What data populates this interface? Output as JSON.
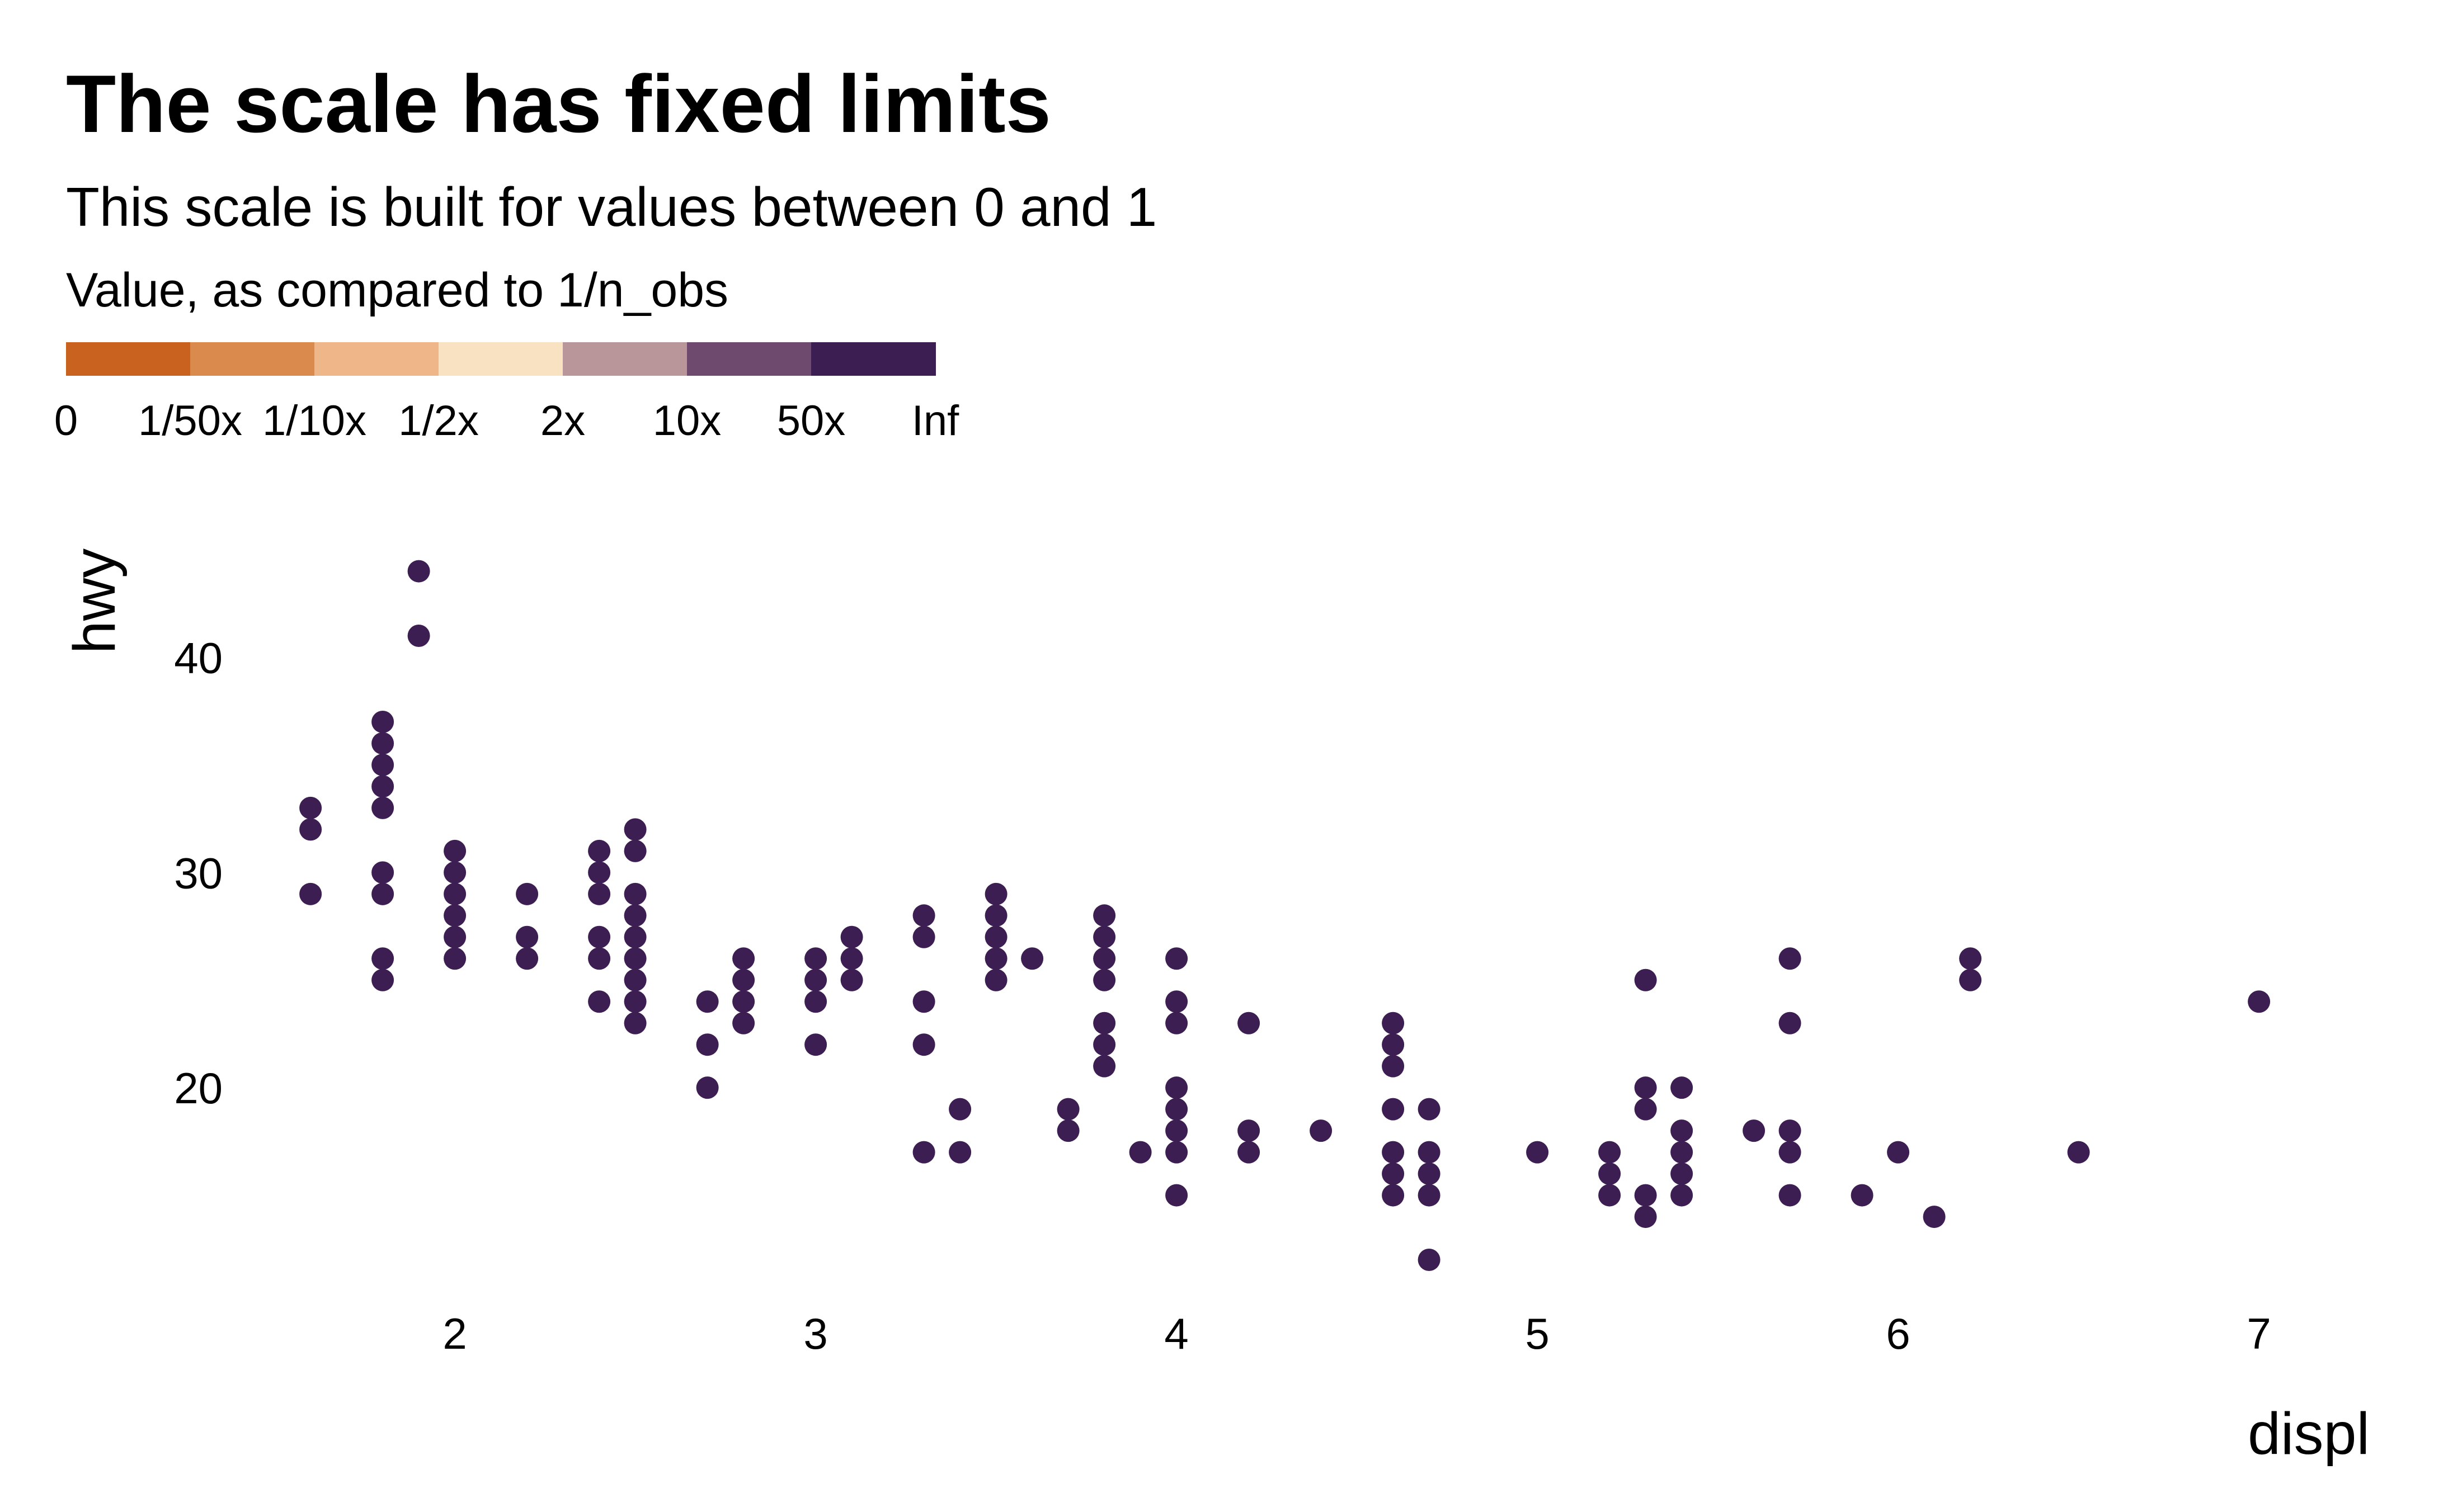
{
  "chart_data": {
    "type": "scatter",
    "title": "The scale has fixed limits",
    "subtitle": "This scale is built for values between 0 and 1",
    "xlabel": "displ",
    "ylabel": "hwy",
    "xlim": [
      1.22,
      7.22
    ],
    "ylim": [
      10.0,
      45.6
    ],
    "x_ticks": [
      2,
      3,
      4,
      5,
      6,
      7
    ],
    "y_ticks": [
      20,
      30,
      40
    ],
    "grid": false,
    "point_color": "#3D1E52",
    "legend": {
      "title": "Value, as compared to 1/n_obs",
      "placement": "top-left",
      "colors": [
        "#C9621F",
        "#DB8A4E",
        "#EFB68A",
        "#F9E2C2",
        "#B8969A",
        "#6E4A6E",
        "#3D1E52"
      ],
      "labels": [
        "0",
        "1/50x",
        "1/10x",
        "1/2x",
        "2x",
        "10x",
        "50x",
        "Inf"
      ]
    },
    "points": [
      [
        1.6,
        33
      ],
      [
        1.6,
        32
      ],
      [
        1.6,
        29
      ],
      [
        1.8,
        37
      ],
      [
        1.8,
        36
      ],
      [
        1.8,
        35
      ],
      [
        1.8,
        34
      ],
      [
        1.8,
        33
      ],
      [
        1.8,
        30
      ],
      [
        1.8,
        29
      ],
      [
        1.8,
        26
      ],
      [
        1.8,
        25
      ],
      [
        1.9,
        44
      ],
      [
        1.9,
        41
      ],
      [
        2.0,
        31
      ],
      [
        2.0,
        30
      ],
      [
        2.0,
        29
      ],
      [
        2.0,
        28
      ],
      [
        2.0,
        27
      ],
      [
        2.0,
        26
      ],
      [
        2.2,
        29
      ],
      [
        2.2,
        27
      ],
      [
        2.2,
        26
      ],
      [
        2.4,
        31
      ],
      [
        2.4,
        30
      ],
      [
        2.4,
        29
      ],
      [
        2.4,
        27
      ],
      [
        2.4,
        26
      ],
      [
        2.4,
        24
      ],
      [
        2.5,
        32
      ],
      [
        2.5,
        31
      ],
      [
        2.5,
        29
      ],
      [
        2.5,
        28
      ],
      [
        2.5,
        27
      ],
      [
        2.5,
        26
      ],
      [
        2.5,
        25
      ],
      [
        2.5,
        24
      ],
      [
        2.5,
        23
      ],
      [
        2.7,
        24
      ],
      [
        2.7,
        22
      ],
      [
        2.7,
        20
      ],
      [
        2.8,
        26
      ],
      [
        2.8,
        25
      ],
      [
        2.8,
        24
      ],
      [
        2.8,
        23
      ],
      [
        3.0,
        26
      ],
      [
        3.0,
        25
      ],
      [
        3.0,
        24
      ],
      [
        3.0,
        22
      ],
      [
        3.1,
        27
      ],
      [
        3.1,
        26
      ],
      [
        3.1,
        25
      ],
      [
        3.3,
        28
      ],
      [
        3.3,
        27
      ],
      [
        3.3,
        24
      ],
      [
        3.3,
        22
      ],
      [
        3.3,
        17
      ],
      [
        3.4,
        19
      ],
      [
        3.4,
        17
      ],
      [
        3.5,
        29
      ],
      [
        3.5,
        28
      ],
      [
        3.5,
        27
      ],
      [
        3.5,
        26
      ],
      [
        3.5,
        25
      ],
      [
        3.6,
        26
      ],
      [
        3.7,
        19
      ],
      [
        3.7,
        18
      ],
      [
        3.8,
        28
      ],
      [
        3.8,
        27
      ],
      [
        3.8,
        26
      ],
      [
        3.8,
        25
      ],
      [
        3.8,
        23
      ],
      [
        3.8,
        22
      ],
      [
        3.8,
        21
      ],
      [
        3.9,
        17
      ],
      [
        4.0,
        26
      ],
      [
        4.0,
        24
      ],
      [
        4.0,
        23
      ],
      [
        4.0,
        20
      ],
      [
        4.0,
        19
      ],
      [
        4.0,
        18
      ],
      [
        4.0,
        17
      ],
      [
        4.0,
        15
      ],
      [
        4.2,
        23
      ],
      [
        4.2,
        18
      ],
      [
        4.2,
        17
      ],
      [
        4.4,
        18
      ],
      [
        4.6,
        23
      ],
      [
        4.6,
        22
      ],
      [
        4.6,
        21
      ],
      [
        4.6,
        19
      ],
      [
        4.6,
        17
      ],
      [
        4.6,
        16
      ],
      [
        4.6,
        15
      ],
      [
        4.7,
        19
      ],
      [
        4.7,
        17
      ],
      [
        4.7,
        16
      ],
      [
        4.7,
        15
      ],
      [
        4.7,
        12
      ],
      [
        5.0,
        17
      ],
      [
        5.2,
        17
      ],
      [
        5.2,
        16
      ],
      [
        5.2,
        15
      ],
      [
        5.3,
        25
      ],
      [
        5.3,
        20
      ],
      [
        5.3,
        19
      ],
      [
        5.3,
        15
      ],
      [
        5.3,
        14
      ],
      [
        5.4,
        20
      ],
      [
        5.4,
        18
      ],
      [
        5.4,
        17
      ],
      [
        5.4,
        16
      ],
      [
        5.4,
        15
      ],
      [
        5.6,
        18
      ],
      [
        5.7,
        26
      ],
      [
        5.7,
        23
      ],
      [
        5.7,
        18
      ],
      [
        5.7,
        17
      ],
      [
        5.7,
        15
      ],
      [
        5.9,
        15
      ],
      [
        6.0,
        17
      ],
      [
        6.1,
        14
      ],
      [
        6.2,
        26
      ],
      [
        6.2,
        25
      ],
      [
        6.5,
        17
      ],
      [
        7.0,
        24
      ]
    ]
  }
}
